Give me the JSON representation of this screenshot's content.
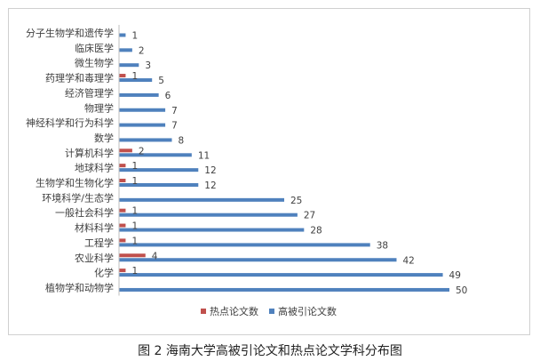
{
  "caption": "图 2 海南大学高被引论文和热点论文学科分布图",
  "colors": {
    "hot": "#c0504d",
    "highly_cited": "#4f81bd",
    "text": "#404040",
    "axis": "#bfbfbf"
  },
  "chart_data": {
    "type": "bar",
    "orientation": "horizontal",
    "categories": [
      "分子生物学和遗传学",
      "临床医学",
      "微生物学",
      "药理学和毒理学",
      "经济管理学",
      "物理学",
      "神经科学和行为科学",
      "数学",
      "计算机科学",
      "地球科学",
      "生物学和生物化学",
      "环境科学/生态学",
      "一般社会科学",
      "材料科学",
      "工程学",
      "农业科学",
      "化学",
      "植物学和动物学"
    ],
    "series": [
      {
        "name": "热点论文数",
        "color": "#c0504d",
        "values": [
          null,
          null,
          null,
          1,
          null,
          null,
          null,
          null,
          2,
          1,
          1,
          null,
          1,
          1,
          1,
          4,
          1,
          null
        ]
      },
      {
        "name": "高被引论文数",
        "color": "#4f81bd",
        "values": [
          1,
          2,
          3,
          5,
          6,
          7,
          7,
          8,
          11,
          12,
          12,
          25,
          27,
          28,
          38,
          42,
          49,
          50
        ]
      }
    ],
    "xlim": [
      0,
      50
    ],
    "grid": false,
    "legend": "bottom"
  }
}
